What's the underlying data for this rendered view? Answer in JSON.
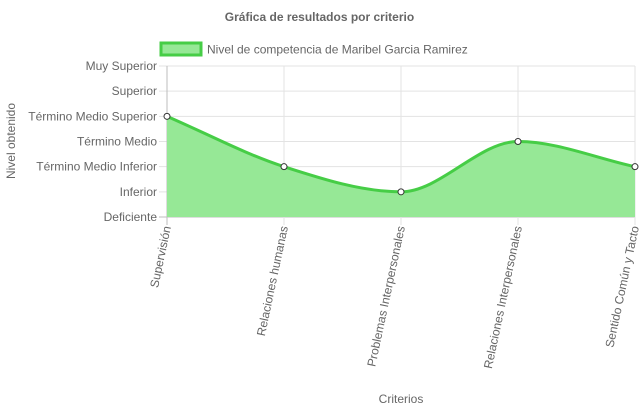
{
  "chart_data": {
    "type": "area",
    "title": "Gráfica de resultados por criterio",
    "xlabel": "Criterios",
    "ylabel": "Nivel obtenido",
    "legend_position": "top",
    "grid": true,
    "y_levels": [
      "Deficiente",
      "Inferior",
      "Término Medio Inferior",
      "Término Medio",
      "Término Medio Superior",
      "Superior",
      "Muy Superior"
    ],
    "categories": [
      "Supervisión",
      "Relaciones humanas",
      "Problemas Interpersonales",
      "Relaciones Interpersonales",
      "Sentido Común y Tacto"
    ],
    "series": [
      {
        "name": "Nivel de competencia de Maribel Garcia Ramirez",
        "values": [
          4,
          2,
          1,
          3,
          2
        ],
        "color": "#46cd46",
        "fill": "#96e896"
      }
    ],
    "ylim": [
      0,
      6
    ]
  }
}
